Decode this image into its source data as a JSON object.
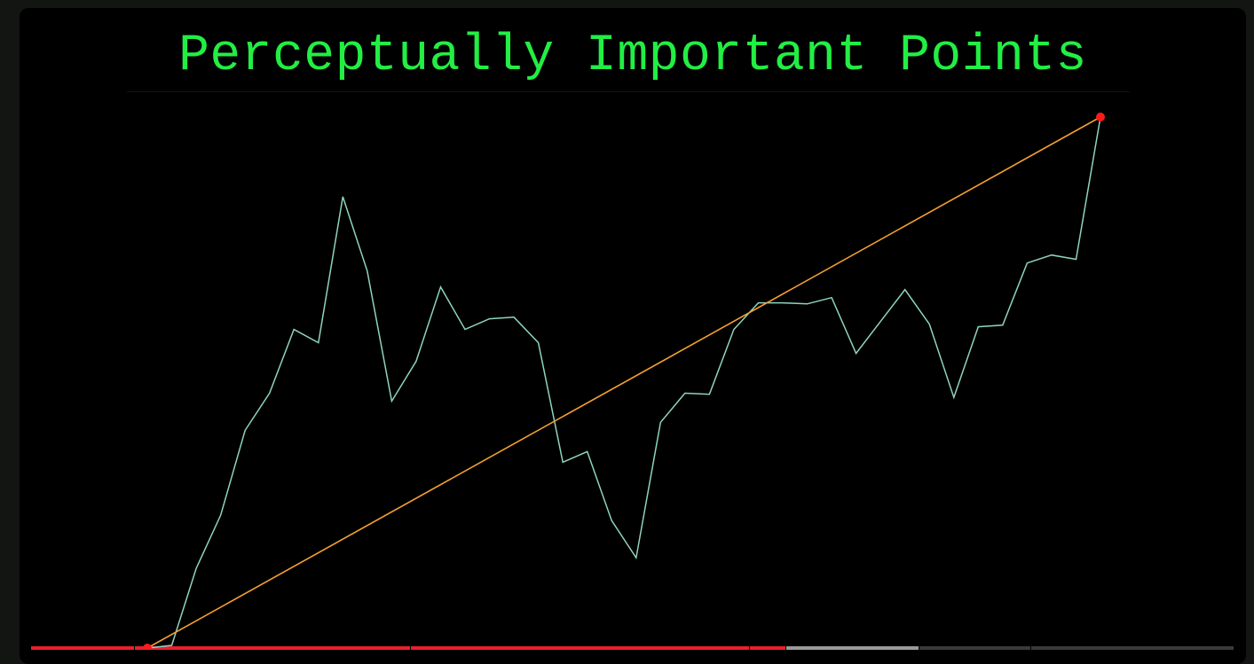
{
  "chart_data": {
    "type": "line",
    "title": "Perceptually Important Points",
    "xlabel": "",
    "ylabel": "",
    "xlim": [
      0,
      39
    ],
    "ylim": [
      0,
      100
    ],
    "grid": false,
    "legend": "none",
    "x": [
      0,
      1,
      2,
      3,
      4,
      5,
      6,
      7,
      8,
      9,
      10,
      11,
      12,
      13,
      14,
      15,
      16,
      17,
      18,
      19,
      20,
      21,
      22,
      23,
      24,
      25,
      26,
      27,
      28,
      29,
      30,
      31,
      32,
      33,
      34,
      35,
      36,
      37,
      38,
      39
    ],
    "series": [
      {
        "kind": "price",
        "color": "#8fd4c0",
        "values": [
          0,
          0.5,
          15,
          25,
          41,
          48,
          60,
          57.5,
          85,
          71,
          46.5,
          54,
          68,
          60,
          62,
          62.3,
          57.5,
          35,
          37,
          24,
          17,
          42.5,
          48,
          47.8,
          60,
          65,
          65,
          64.8,
          66,
          55.5,
          61.5,
          67.5,
          61,
          47.2,
          60.5,
          60.8,
          72.5,
          74,
          73.2,
          100
        ]
      },
      {
        "kind": "pip-line",
        "color": "#f5a030",
        "x": [
          0,
          39
        ],
        "values": [
          0,
          100
        ]
      }
    ],
    "pips": {
      "color": "#ff1a1a",
      "x": [
        0,
        39
      ],
      "values": [
        0,
        100
      ]
    }
  },
  "bottom_strip": [
    {
      "color": "#e8202e"
    },
    {
      "color": "#e8202e"
    },
    {
      "color": "#e8202e"
    },
    {
      "color": "#e8202e"
    },
    {
      "color": "#9a9a9a"
    },
    {
      "color": "#3a3a3a"
    },
    {
      "color": "#3a3a3a"
    }
  ]
}
